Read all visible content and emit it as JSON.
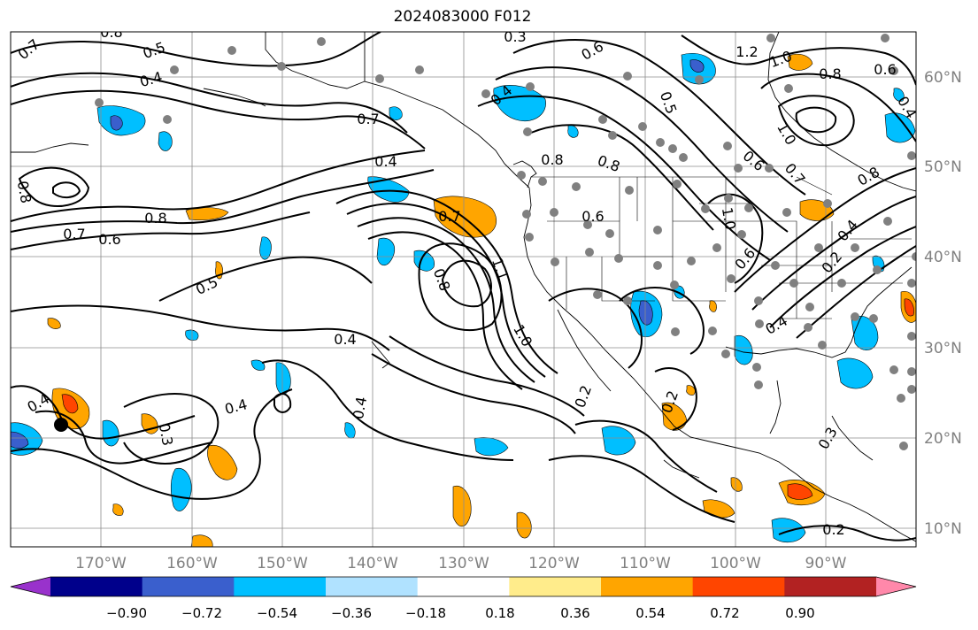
{
  "title": "2024083000 F012",
  "lat_labels": [
    "60°N",
    "50°N",
    "40°N",
    "30°N",
    "20°N",
    "10°N"
  ],
  "lon_labels": [
    "170°W",
    "160°W",
    "150°W",
    "140°W",
    "130°W",
    "120°W",
    "110°W",
    "100°W",
    "90°W"
  ],
  "colorbar": {
    "tick_labels": [
      "−0.90",
      "−0.72",
      "−0.54",
      "−0.36",
      "−0.18",
      "0.18",
      "0.36",
      "0.54",
      "0.72",
      "0.90"
    ],
    "colors": [
      "#9932cc",
      "#00008b",
      "#3a5fcd",
      "#00bfff",
      "#b0e2ff",
      "#ffffff",
      "#ffec8b",
      "#ffa500",
      "#ff4500",
      "#b22222",
      "#ff88aa"
    ]
  },
  "contour_labels": [
    "0.7",
    "0.8",
    "0.5",
    "0.4",
    "0.3",
    "0.7",
    "0.8",
    "0.7",
    "0.6",
    "0.8",
    "0.5",
    "0.4",
    "0.4",
    "0.4",
    "0.3",
    "0.4",
    "0.7",
    "0.4",
    "0.8",
    "1.1",
    "1.0",
    "0.2",
    "0.2",
    "0.4",
    "0.6",
    "0.8",
    "0.8",
    "0.6",
    "1.2",
    "1.0",
    "0.8",
    "0.6",
    "0.5",
    "1.0",
    "0.6",
    "0.7",
    "0.8",
    "1.0",
    "0.4",
    "0.2",
    "0.4",
    "0.2",
    "0.6",
    "0.3",
    "0.4"
  ],
  "features": {
    "storm_marker": "black-dot-marker",
    "station_marker": "gray-dot-marker"
  }
}
